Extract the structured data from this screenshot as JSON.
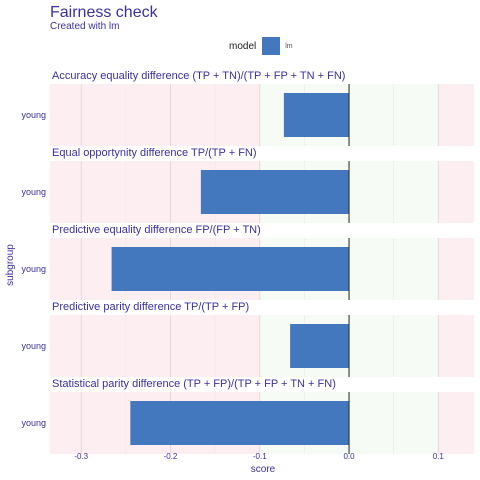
{
  "header": {
    "title": "Fairness check",
    "subtitle": "Created with lm"
  },
  "legend": {
    "title": "model",
    "items": [
      {
        "label": "lm",
        "color": "#4378bf"
      }
    ]
  },
  "colors": {
    "bar": "#4378bf",
    "red_zone": "#fdeef1",
    "green_zone": "#f6fcf5",
    "text": "#3c2fa3",
    "zero_line": "#222222"
  },
  "chart_data": {
    "type": "bar",
    "orientation": "horizontal",
    "xlabel": "score",
    "ylabel": "subgroup",
    "xlim": [
      -0.335,
      0.14
    ],
    "xticks": [
      -0.3,
      -0.2,
      -0.1,
      0.0,
      0.1
    ],
    "xtick_labels": [
      "-0.3",
      "-0.2",
      "-0.1",
      "0.0",
      "0.1"
    ],
    "acceptable_range": [
      -0.1,
      0.1
    ],
    "panels": [
      {
        "title": "Accuracy equality difference    (TP + TN)/(TP + FP + TN + FN)",
        "category": "young",
        "value": -0.073
      },
      {
        "title": "Equal opportynity difference     TP/(TP + FN)",
        "category": "young",
        "value": -0.166
      },
      {
        "title": "Predictive equality difference   FP/(FP + TN)",
        "category": "young",
        "value": -0.266
      },
      {
        "title": "Predictive parity difference     TP/(TP + FP)",
        "category": "young",
        "value": -0.066
      },
      {
        "title": "Statistical parity difference   (TP + FP)/(TP + FP + TN + FN)",
        "category": "young",
        "value": -0.245
      }
    ]
  }
}
